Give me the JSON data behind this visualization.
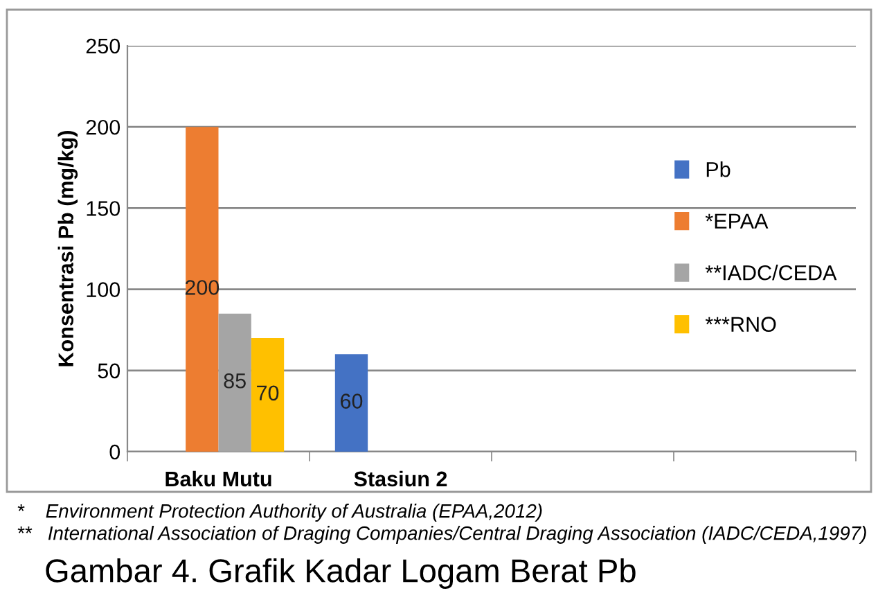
{
  "chart_data": {
    "type": "bar",
    "ylabel": "Konsentrasi Pb (mg/kg)",
    "categories": [
      "Baku Mutu",
      "Stasiun 2",
      null,
      null
    ],
    "series": [
      {
        "name": "Pb",
        "color": "#4472c4",
        "values": [
          null,
          60,
          null,
          null
        ]
      },
      {
        "name": "*EPAA",
        "color": "#ed7d31",
        "values": [
          200,
          null,
          null,
          null
        ]
      },
      {
        "name": "**IADC/CEDA",
        "color": "#a5a5a5",
        "values": [
          85,
          null,
          null,
          null
        ]
      },
      {
        "name": "***RNO",
        "color": "#ffc000",
        "values": [
          70,
          null,
          null,
          null
        ]
      }
    ],
    "ylim": [
      0,
      250
    ],
    "yticks": [
      0,
      50,
      100,
      150,
      200,
      250
    ],
    "grid": "y",
    "legend": "right",
    "data_labels": true,
    "annotations": [
      "*    Environment Protection Authority of Australia (EPAA,2012)",
      "**   International Association of Draging Companies/Central Draging Association (IADC/CEDA,1997)",
      "Gambar 4. Grafik Kadar Logam Berat Pb"
    ]
  }
}
